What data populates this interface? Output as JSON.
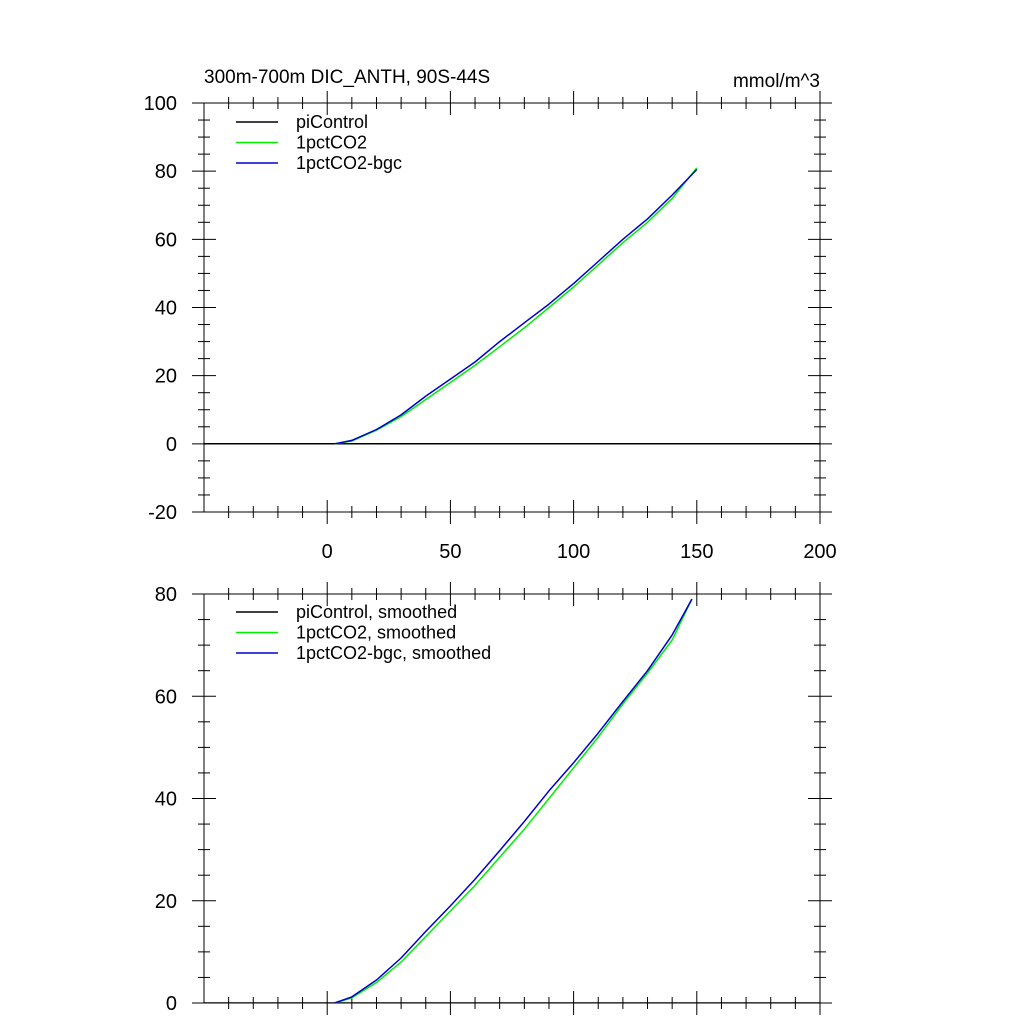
{
  "chart_data": [
    {
      "type": "line",
      "title": "300m-700m DIC_ANTH, 90S-44S",
      "units": "mmol/m^3",
      "xlim": [
        -50,
        200
      ],
      "ylim": [
        -20,
        100
      ],
      "x_ticks": [
        0,
        50,
        100,
        150,
        200
      ],
      "x_tick_labels": [
        "0",
        "50",
        "100",
        "150",
        "200"
      ],
      "y_ticks": [
        -20,
        0,
        20,
        40,
        60,
        80,
        100
      ],
      "y_tick_labels": [
        "-20",
        "0",
        "20",
        "40",
        "60",
        "80",
        "100"
      ],
      "legend_position": "top-left",
      "series": [
        {
          "name": "piControl",
          "color": "#000000",
          "x": [
            -50,
            200
          ],
          "y": [
            0,
            0
          ]
        },
        {
          "name": "1pctCO2",
          "color": "#00ee00",
          "x": [
            3,
            10,
            20,
            30,
            40,
            50,
            60,
            70,
            80,
            90,
            100,
            110,
            120,
            130,
            140,
            150
          ],
          "y": [
            0,
            0.8,
            4,
            8,
            13,
            18,
            23,
            28.5,
            34,
            40,
            46,
            52.5,
            59,
            65,
            72,
            81
          ]
        },
        {
          "name": "1pctCO2-bgc",
          "color": "#0000cc",
          "x": [
            3,
            10,
            20,
            30,
            40,
            50,
            60,
            70,
            80,
            90,
            100,
            110,
            120,
            130,
            140,
            150
          ],
          "y": [
            0,
            1,
            4.2,
            8.5,
            14,
            19,
            24,
            30,
            35.5,
            41,
            47,
            53.5,
            60,
            66,
            73,
            80.5
          ]
        }
      ]
    },
    {
      "type": "line",
      "title": "",
      "xlim": [
        -50,
        200
      ],
      "ylim": [
        0,
        80
      ],
      "x_ticks": [
        0,
        50,
        100,
        150,
        200
      ],
      "y_ticks": [
        0,
        20,
        40,
        60,
        80
      ],
      "y_tick_labels": [
        "0",
        "20",
        "40",
        "60",
        "80"
      ],
      "legend_position": "top-left",
      "series": [
        {
          "name": "piControl, smoothed",
          "color": "#000000",
          "x": [
            -50,
            200
          ],
          "y": [
            0,
            0
          ]
        },
        {
          "name": "1pctCO2, smoothed",
          "color": "#00ee00",
          "x": [
            3,
            10,
            20,
            30,
            40,
            50,
            60,
            70,
            80,
            90,
            100,
            110,
            120,
            130,
            140,
            148
          ],
          "y": [
            0,
            1,
            4,
            8,
            13,
            18,
            23,
            28.5,
            34,
            40,
            46,
            52,
            58.5,
            64.5,
            71,
            79
          ]
        },
        {
          "name": "1pctCO2-bgc, smoothed",
          "color": "#0000cc",
          "x": [
            3,
            10,
            20,
            30,
            40,
            50,
            60,
            70,
            80,
            90,
            100,
            110,
            120,
            130,
            140,
            148
          ],
          "y": [
            0,
            1.2,
            4.5,
            8.8,
            14,
            19,
            24.2,
            29.8,
            35.5,
            41.5,
            47,
            52.8,
            59,
            65,
            72,
            79
          ]
        }
      ]
    }
  ]
}
